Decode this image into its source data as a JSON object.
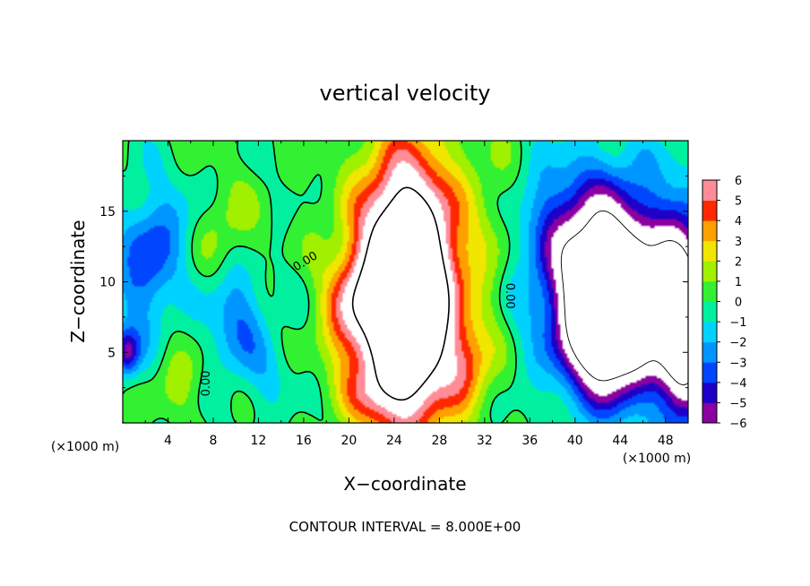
{
  "chart_data": {
    "type": "heatmap",
    "title": "vertical velocity",
    "xlabel": "X−coordinate",
    "ylabel": "Z−coordinate",
    "x_unit_label": "(×1000 m)",
    "x_unit_label_left": "(×1000 m)",
    "xlim": [
      0,
      50
    ],
    "ylim": [
      0,
      20
    ],
    "x_ticks": [
      4,
      8,
      12,
      16,
      20,
      24,
      28,
      32,
      36,
      40,
      44,
      48
    ],
    "y_ticks": [
      5,
      10,
      15
    ],
    "footnote": "CONTOUR INTERVAL = 8.000E+00",
    "colorbar": {
      "min": -6,
      "max": 6,
      "ticks": [
        6,
        5,
        4,
        3,
        2,
        1,
        0,
        -1,
        -2,
        -3,
        -4,
        -5,
        -6
      ],
      "tick_labels": [
        "6",
        "5",
        "4",
        "3",
        "2",
        "1",
        "0",
        "−1",
        "−2",
        "−3",
        "−4",
        "−5",
        "−6"
      ]
    },
    "contour_labels": [
      {
        "text": "0.00",
        "x": 16.1,
        "y": 11.5,
        "rot": -32
      },
      {
        "text": "0.00",
        "x": 7.3,
        "y": 2.8,
        "rot": -90
      },
      {
        "text": "0.00",
        "x": 34.3,
        "y": 9.0,
        "rot": 90
      }
    ],
    "features": [
      {
        "x": 25,
        "y": 9,
        "sx": 2.6,
        "sy": 5.5,
        "amp": 14
      },
      {
        "x": 25.5,
        "y": 10.5,
        "sx": 4.0,
        "sy": 7.0,
        "amp": 4
      },
      {
        "x": 20,
        "y": 8,
        "sx": 1.6,
        "sy": 2.5,
        "amp": 3.5
      },
      {
        "x": 30.5,
        "y": 4,
        "sx": 1.5,
        "sy": 2.0,
        "amp": 3
      },
      {
        "x": 22,
        "y": 2,
        "sx": 2.0,
        "sy": 1.5,
        "amp": 2
      },
      {
        "x": 9,
        "y": 13.5,
        "sx": 2.2,
        "sy": 2.5,
        "amp": 1.8
      },
      {
        "x": 5,
        "y": 3,
        "sx": 1.6,
        "sy": 1.8,
        "amp": 1.5
      },
      {
        "x": 43.5,
        "y": 10,
        "sx": 4.5,
        "sy": 5.0,
        "amp": -7
      },
      {
        "x": 43,
        "y": 7.5,
        "sx": 2.6,
        "sy": 3.5,
        "amp": -12
      },
      {
        "x": 49.5,
        "y": 7,
        "sx": 1.5,
        "sy": 4.5,
        "amp": -11
      },
      {
        "x": 40,
        "y": 14,
        "sx": 3.5,
        "sy": 3.0,
        "amp": -2.5
      },
      {
        "x": 2,
        "y": 11,
        "sx": 1.8,
        "sy": 3.5,
        "amp": -3.5
      },
      {
        "x": 0.3,
        "y": 5,
        "sx": 0.8,
        "sy": 1.2,
        "amp": -5
      },
      {
        "x": 10,
        "y": 7.5,
        "sx": 1.8,
        "sy": 3.0,
        "amp": -3
      },
      {
        "x": 5,
        "y": 14,
        "sx": 2.0,
        "sy": 2.5,
        "amp": -1.5
      },
      {
        "x": 33,
        "y": 14,
        "sx": 1.5,
        "sy": 4.0,
        "amp": 1
      },
      {
        "x": 13,
        "y": 3.5,
        "sx": 1.5,
        "sy": 2.0,
        "amp": -1.2
      }
    ]
  }
}
